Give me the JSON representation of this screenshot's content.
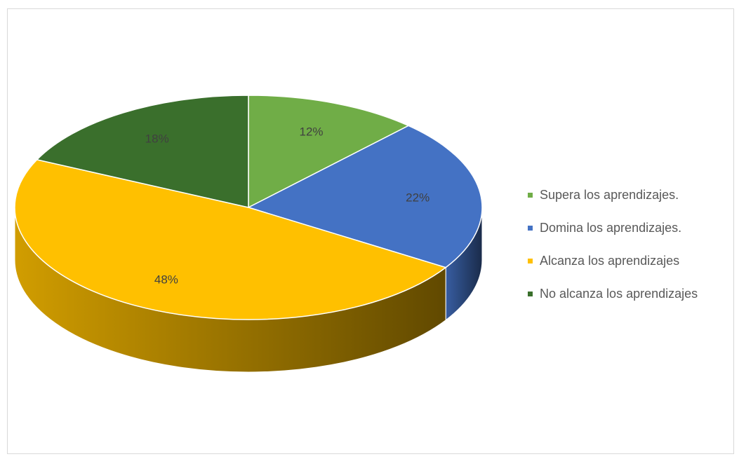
{
  "chart_data": {
    "type": "pie",
    "title": "",
    "slices": [
      {
        "label": "Supera los aprendizajes.",
        "value": 12,
        "data_label": "12%",
        "color": "#70AD47"
      },
      {
        "label": "Domina los aprendizajes.",
        "value": 22,
        "data_label": "22%",
        "color": "#4472C4"
      },
      {
        "label": "Alcanza los aprendizajes",
        "value": 48,
        "data_label": "48%",
        "color": "#FFC000"
      },
      {
        "label": "No alcanza los aprendizajes",
        "value": 18,
        "data_label": "18%",
        "color": "#3A6F2C"
      }
    ],
    "legend_position": "right",
    "style": "3d-pie"
  }
}
